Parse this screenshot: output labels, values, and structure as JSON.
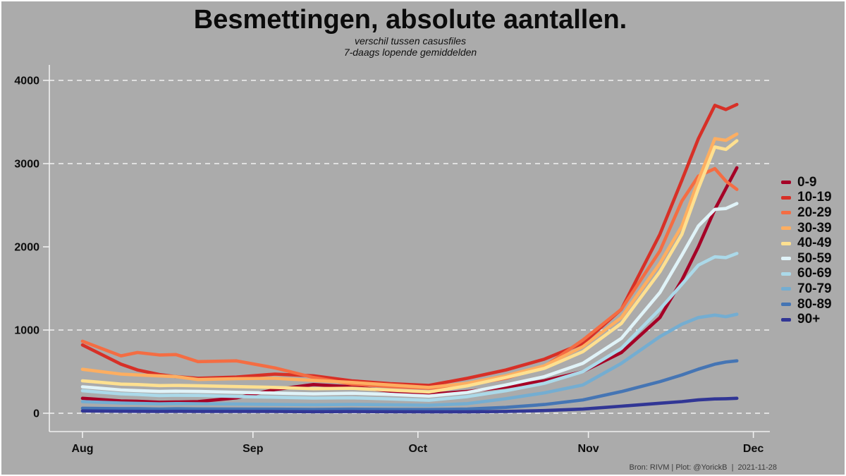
{
  "header": {
    "title": "Besmettingen, absolute aantallen.",
    "subtitle_line1": "verschil tussen casusfiles",
    "subtitle_line2": "7-daags lopende gemiddelden"
  },
  "footer": {
    "credit": "Bron: RIVM | Plot: @YorickB  |  2021-11-28"
  },
  "colors": {
    "background": "#ABABAB",
    "axis": "#F0F0F0",
    "grid": "#F2F2F2",
    "tick_label": "#0D0D0D",
    "title": "#0B0B0B"
  },
  "chart_data": {
    "type": "line",
    "title": "Besmettingen, absolute aantallen.",
    "subtitle": [
      "verschil tussen casusfiles",
      "7-daags lopende gemiddelden"
    ],
    "xlabel": "",
    "ylabel": "",
    "ylim": [
      0,
      4200
    ],
    "x_unit": "days since Aug 1 (2021)",
    "x_range_days": [
      0,
      119
    ],
    "grid": "dashed horizontal (none at 2000)",
    "legend_position": "right",
    "x_ticks": [
      {
        "label": "Aug",
        "day": 0
      },
      {
        "label": "Sep",
        "day": 31
      },
      {
        "label": "Oct",
        "day": 61
      },
      {
        "label": "Nov",
        "day": 92
      },
      {
        "label": "Dec",
        "day": 122
      }
    ],
    "y_ticks": [
      {
        "label": "0",
        "value": 0,
        "grid": true
      },
      {
        "label": "1000",
        "value": 1000,
        "grid": true
      },
      {
        "label": "2000",
        "value": 2000,
        "grid": false
      },
      {
        "label": "3000",
        "value": 3000,
        "grid": true
      },
      {
        "label": "4000",
        "value": 4000,
        "grid": true
      }
    ],
    "days": [
      0,
      7,
      10,
      14,
      17,
      21,
      28,
      35,
      42,
      49,
      56,
      63,
      70,
      77,
      84,
      91,
      98,
      105,
      109,
      112,
      115,
      117,
      119
    ],
    "series": [
      {
        "name": "0-9",
        "color": "#A50026",
        "values": [
          180,
          148,
          143,
          132,
          135,
          140,
          185,
          285,
          345,
          318,
          265,
          228,
          262,
          315,
          390,
          500,
          730,
          1150,
          1600,
          2000,
          2450,
          2700,
          2950
        ]
      },
      {
        "name": "10-19",
        "color": "#D73027",
        "values": [
          820,
          590,
          520,
          465,
          440,
          420,
          435,
          470,
          450,
          390,
          355,
          335,
          420,
          520,
          650,
          840,
          1250,
          2150,
          2800,
          3300,
          3700,
          3650,
          3710
        ]
      },
      {
        "name": "20-29",
        "color": "#F46D43",
        "values": [
          865,
          690,
          730,
          700,
          705,
          620,
          630,
          545,
          430,
          350,
          320,
          300,
          340,
          420,
          560,
          880,
          1250,
          1950,
          2550,
          2850,
          2940,
          2790,
          2690
        ]
      },
      {
        "name": "30-39",
        "color": "#FDAE61",
        "values": [
          528,
          470,
          460,
          448,
          440,
          405,
          415,
          420,
          395,
          370,
          340,
          310,
          360,
          450,
          570,
          800,
          1150,
          1800,
          2250,
          2800,
          3300,
          3280,
          3355
        ]
      },
      {
        "name": "40-49",
        "color": "#FEE090",
        "values": [
          390,
          350,
          345,
          332,
          335,
          330,
          320,
          310,
          295,
          300,
          278,
          256,
          330,
          430,
          540,
          740,
          1080,
          1700,
          2150,
          2700,
          3200,
          3170,
          3275
        ]
      },
      {
        "name": "50-59",
        "color": "#E0F3F8",
        "values": [
          318,
          280,
          272,
          262,
          265,
          262,
          252,
          242,
          232,
          240,
          226,
          206,
          250,
          340,
          440,
          600,
          900,
          1450,
          1900,
          2250,
          2450,
          2460,
          2520
        ]
      },
      {
        "name": "60-69",
        "color": "#ABD9E9",
        "values": [
          270,
          233,
          226,
          213,
          216,
          214,
          202,
          192,
          182,
          186,
          172,
          156,
          200,
          270,
          360,
          500,
          780,
          1250,
          1550,
          1780,
          1880,
          1870,
          1920
        ]
      },
      {
        "name": "70-79",
        "color": "#74ADD1",
        "values": [
          140,
          123,
          119,
          113,
          116,
          114,
          111,
          106,
          102,
          106,
          101,
          96,
          115,
          175,
          245,
          340,
          600,
          920,
          1070,
          1150,
          1180,
          1160,
          1190
        ]
      },
      {
        "name": "80-89",
        "color": "#4575B4",
        "values": [
          60,
          55,
          54,
          51,
          53,
          52,
          50,
          49,
          47,
          49,
          47,
          45,
          50,
          70,
          105,
          160,
          260,
          380,
          460,
          530,
          590,
          615,
          630
        ]
      },
      {
        "name": "90+",
        "color": "#313695",
        "values": [
          28,
          24,
          23,
          22,
          23,
          22,
          22,
          21,
          19,
          20,
          19,
          18,
          18,
          22,
          32,
          50,
          85,
          120,
          140,
          160,
          172,
          175,
          180
        ]
      }
    ]
  }
}
